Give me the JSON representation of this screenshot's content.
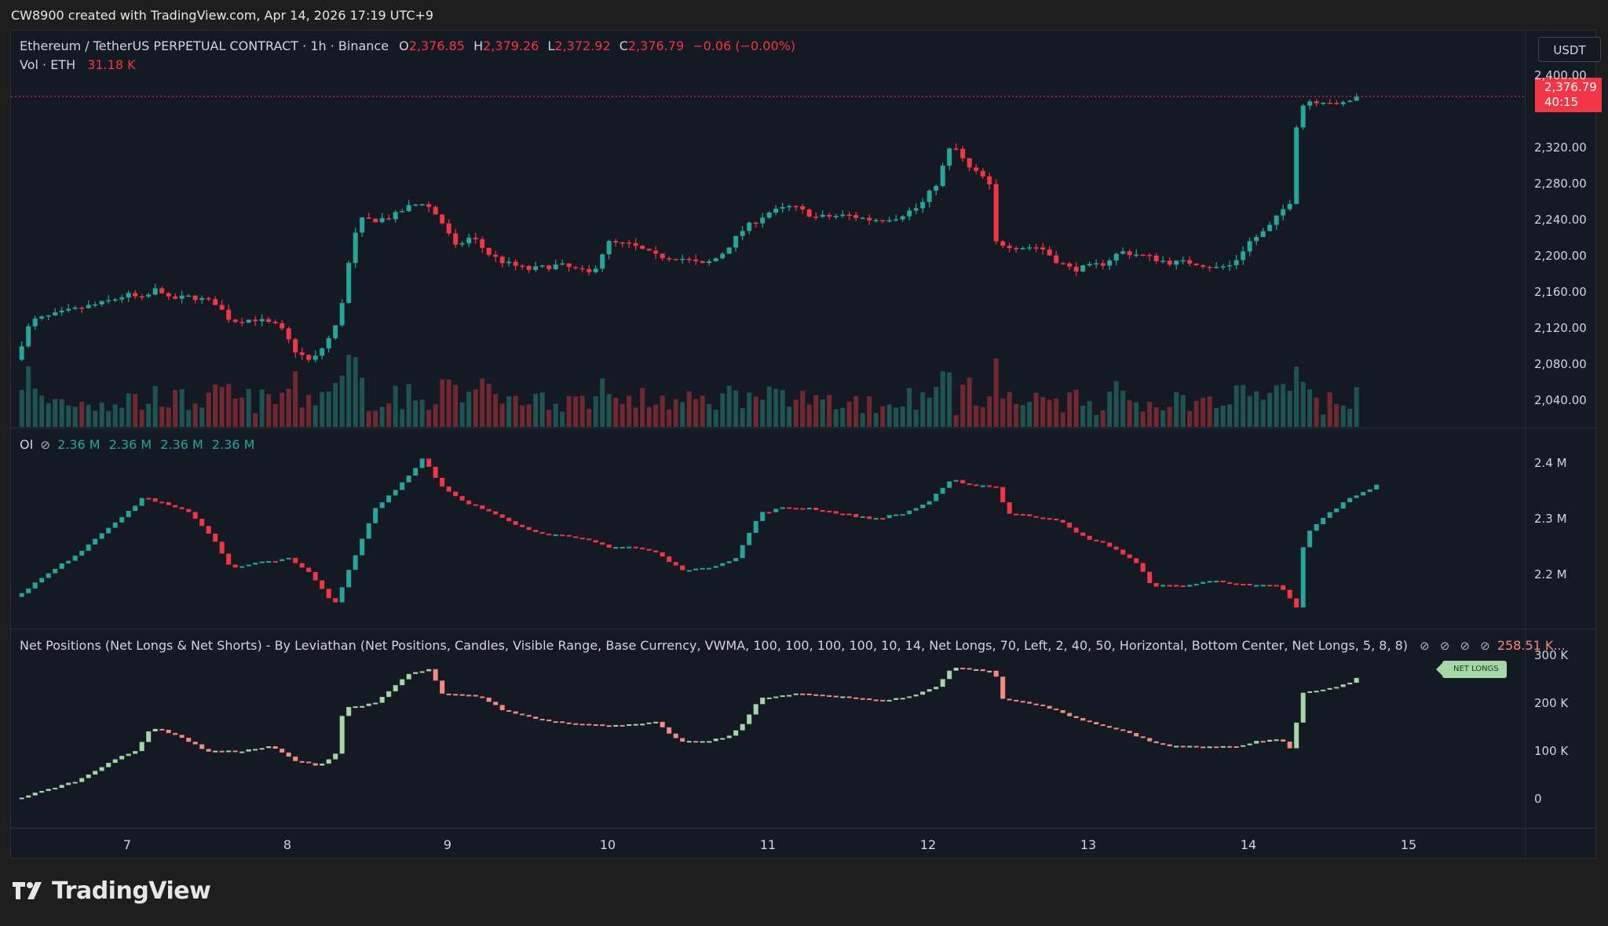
{
  "header": {
    "caption": "CW8900 created with TradingView.com, Apr 14, 2026 17:19 UTC+9"
  },
  "main_pane": {
    "symbol": "Ethereum / TetherUS PERPETUAL CONTRACT · 1h · Binance",
    "o_label": "O",
    "o_value": "2,376.85",
    "h_label": "H",
    "h_value": "2,379.26",
    "l_label": "L",
    "l_value": "2,372.92",
    "c_label": "C",
    "c_value": "2,376.79",
    "change": "−0.06 (−0.00%)",
    "vol_label": "Vol · ETH",
    "vol_value": "31.18 K",
    "unit": "USDT",
    "last_price": "2,376.79",
    "countdown": "40:15"
  },
  "oi_pane": {
    "label": "OI",
    "values": [
      "2.36 M",
      "2.36 M",
      "2.36 M",
      "2.36 M"
    ]
  },
  "net_pane": {
    "label": "Net Positions (Net Longs & Net Shorts) - By Leviathan (Net Positions, Candles, Visible Range, Base Currency, VWMA, 100, 100, 100, 100, 10, 14, Net Longs, 70, Left, 2, 40, 50, Horizontal, Bottom Center, Net Longs, 5, 8, 8)",
    "value": "258.51 K...",
    "tag": "NET LONGS"
  },
  "brand": {
    "name": "TradingView"
  },
  "colors": {
    "up": "#26a69a",
    "down": "#f23645",
    "net_up": "#a5d6a7",
    "net_down": "#f28b82",
    "background": "#151924"
  },
  "chart_data": [
    {
      "type": "candlestick",
      "title": "Ethereum / TetherUS PERPETUAL CONTRACT · 1h · Binance",
      "x_ticks": [
        "7",
        "8",
        "9",
        "10",
        "11",
        "12",
        "13",
        "14",
        "15"
      ],
      "y_ticks": [
        "2,040.00",
        "2,080.00",
        "2,120.00",
        "2,160.00",
        "2,200.00",
        "2,240.00",
        "2,280.00",
        "2,320.00",
        "2,400.00"
      ],
      "ylim": [
        2015,
        2415
      ],
      "close_path": [
        [
          6.3,
          2085
        ],
        [
          6.4,
          2128
        ],
        [
          6.55,
          2135
        ],
        [
          6.7,
          2142
        ],
        [
          6.85,
          2148
        ],
        [
          7.0,
          2157
        ],
        [
          7.1,
          2152
        ],
        [
          7.2,
          2166
        ],
        [
          7.25,
          2152
        ],
        [
          7.4,
          2155
        ],
        [
          7.55,
          2148
        ],
        [
          7.65,
          2128
        ],
        [
          7.8,
          2130
        ],
        [
          7.95,
          2122
        ],
        [
          8.05,
          2095
        ],
        [
          8.15,
          2082
        ],
        [
          8.25,
          2106
        ],
        [
          8.32,
          2128
        ],
        [
          8.4,
          2208
        ],
        [
          8.45,
          2240
        ],
        [
          8.55,
          2240
        ],
        [
          8.65,
          2243
        ],
        [
          8.75,
          2254
        ],
        [
          8.85,
          2260
        ],
        [
          8.95,
          2242
        ],
        [
          9.05,
          2210
        ],
        [
          9.15,
          2222
        ],
        [
          9.25,
          2203
        ],
        [
          9.35,
          2193
        ],
        [
          9.5,
          2185
        ],
        [
          9.7,
          2190
        ],
        [
          9.9,
          2180
        ],
        [
          10.0,
          2215
        ],
        [
          10.15,
          2212
        ],
        [
          10.3,
          2200
        ],
        [
          10.45,
          2198
        ],
        [
          10.6,
          2190
        ],
        [
          10.7,
          2200
        ],
        [
          10.85,
          2230
        ],
        [
          11.0,
          2248
        ],
        [
          11.15,
          2255
        ],
        [
          11.3,
          2243
        ],
        [
          11.5,
          2245
        ],
        [
          11.65,
          2240
        ],
        [
          11.8,
          2243
        ],
        [
          11.95,
          2255
        ],
        [
          12.05,
          2280
        ],
        [
          12.15,
          2325
        ],
        [
          12.25,
          2298
        ],
        [
          12.38,
          2283
        ],
        [
          12.42,
          2215
        ],
        [
          12.55,
          2210
        ],
        [
          12.7,
          2210
        ],
        [
          12.8,
          2195
        ],
        [
          12.9,
          2185
        ],
        [
          13.0,
          2188
        ],
        [
          13.1,
          2192
        ],
        [
          13.2,
          2205
        ],
        [
          13.35,
          2200
        ],
        [
          13.5,
          2193
        ],
        [
          13.65,
          2193
        ],
        [
          13.8,
          2187
        ],
        [
          13.9,
          2190
        ],
        [
          14.0,
          2215
        ],
        [
          14.12,
          2230
        ],
        [
          14.2,
          2248
        ],
        [
          14.28,
          2265
        ],
        [
          14.3,
          2345
        ],
        [
          14.35,
          2372
        ],
        [
          14.5,
          2372
        ],
        [
          14.55,
          2366
        ],
        [
          14.65,
          2374
        ],
        [
          14.7,
          2377
        ]
      ]
    },
    {
      "type": "bar",
      "title": "Vol · ETH",
      "note": "volume histogram shown along bottom of price pane (relative heights, max ≈ 1)"
    },
    {
      "type": "line",
      "title": "OI",
      "y_ticks": [
        "2.2 M",
        "2.3 M",
        "2.4 M"
      ],
      "ylim": [
        2.12,
        2.43
      ],
      "points": [
        [
          6.3,
          2.16
        ],
        [
          6.5,
          2.2
        ],
        [
          6.7,
          2.24
        ],
        [
          6.9,
          2.29
        ],
        [
          7.0,
          2.31
        ],
        [
          7.1,
          2.34
        ],
        [
          7.2,
          2.33
        ],
        [
          7.4,
          2.31
        ],
        [
          7.55,
          2.26
        ],
        [
          7.65,
          2.21
        ],
        [
          7.8,
          2.22
        ],
        [
          8.0,
          2.23
        ],
        [
          8.15,
          2.2
        ],
        [
          8.25,
          2.16
        ],
        [
          8.3,
          2.15
        ],
        [
          8.4,
          2.22
        ],
        [
          8.55,
          2.32
        ],
        [
          8.7,
          2.36
        ],
        [
          8.85,
          2.41
        ],
        [
          8.95,
          2.36
        ],
        [
          9.1,
          2.33
        ],
        [
          9.3,
          2.31
        ],
        [
          9.5,
          2.28
        ],
        [
          9.7,
          2.27
        ],
        [
          9.9,
          2.26
        ],
        [
          10.0,
          2.25
        ],
        [
          10.15,
          2.25
        ],
        [
          10.3,
          2.24
        ],
        [
          10.45,
          2.21
        ],
        [
          10.6,
          2.21
        ],
        [
          10.8,
          2.23
        ],
        [
          10.95,
          2.31
        ],
        [
          11.1,
          2.32
        ],
        [
          11.25,
          2.32
        ],
        [
          11.45,
          2.31
        ],
        [
          11.65,
          2.3
        ],
        [
          11.85,
          2.31
        ],
        [
          12.0,
          2.33
        ],
        [
          12.15,
          2.37
        ],
        [
          12.3,
          2.36
        ],
        [
          12.42,
          2.36
        ],
        [
          12.5,
          2.31
        ],
        [
          12.8,
          2.3
        ],
        [
          12.95,
          2.27
        ],
        [
          13.15,
          2.25
        ],
        [
          13.3,
          2.22
        ],
        [
          13.4,
          2.18
        ],
        [
          13.6,
          2.18
        ],
        [
          13.8,
          2.19
        ],
        [
          14.0,
          2.18
        ],
        [
          14.2,
          2.18
        ],
        [
          14.3,
          2.14
        ],
        [
          14.35,
          2.27
        ],
        [
          14.5,
          2.31
        ],
        [
          14.65,
          2.34
        ],
        [
          14.8,
          2.36
        ]
      ]
    },
    {
      "type": "candlestick",
      "title": "Net Positions",
      "y_ticks": [
        "0",
        "100 K",
        "200 K",
        "300 K"
      ],
      "ylim": [
        -50,
        310
      ],
      "points": [
        [
          6.3,
          0
        ],
        [
          6.5,
          20
        ],
        [
          6.7,
          40
        ],
        [
          6.9,
          80
        ],
        [
          7.05,
          100
        ],
        [
          7.15,
          150
        ],
        [
          7.3,
          135
        ],
        [
          7.5,
          100
        ],
        [
          7.7,
          100
        ],
        [
          7.9,
          110
        ],
        [
          8.05,
          80
        ],
        [
          8.2,
          70
        ],
        [
          8.3,
          95
        ],
        [
          8.35,
          190
        ],
        [
          8.55,
          200
        ],
        [
          8.75,
          260
        ],
        [
          8.9,
          272
        ],
        [
          8.95,
          220
        ],
        [
          9.2,
          215
        ],
        [
          9.35,
          185
        ],
        [
          9.6,
          165
        ],
        [
          9.9,
          155
        ],
        [
          10.15,
          155
        ],
        [
          10.3,
          160
        ],
        [
          10.45,
          120
        ],
        [
          10.6,
          120
        ],
        [
          10.75,
          130
        ],
        [
          10.85,
          160
        ],
        [
          10.95,
          210
        ],
        [
          11.2,
          220
        ],
        [
          11.45,
          215
        ],
        [
          11.7,
          205
        ],
        [
          11.9,
          215
        ],
        [
          12.05,
          235
        ],
        [
          12.15,
          275
        ],
        [
          12.3,
          270
        ],
        [
          12.42,
          265
        ],
        [
          12.45,
          210
        ],
        [
          12.65,
          200
        ],
        [
          12.8,
          185
        ],
        [
          13.0,
          160
        ],
        [
          13.2,
          145
        ],
        [
          13.35,
          125
        ],
        [
          13.5,
          110
        ],
        [
          13.7,
          110
        ],
        [
          13.95,
          110
        ],
        [
          14.05,
          120
        ],
        [
          14.2,
          125
        ],
        [
          14.28,
          100
        ],
        [
          14.32,
          220
        ],
        [
          14.5,
          230
        ],
        [
          14.65,
          245
        ],
        [
          14.7,
          258.5
        ]
      ]
    }
  ]
}
